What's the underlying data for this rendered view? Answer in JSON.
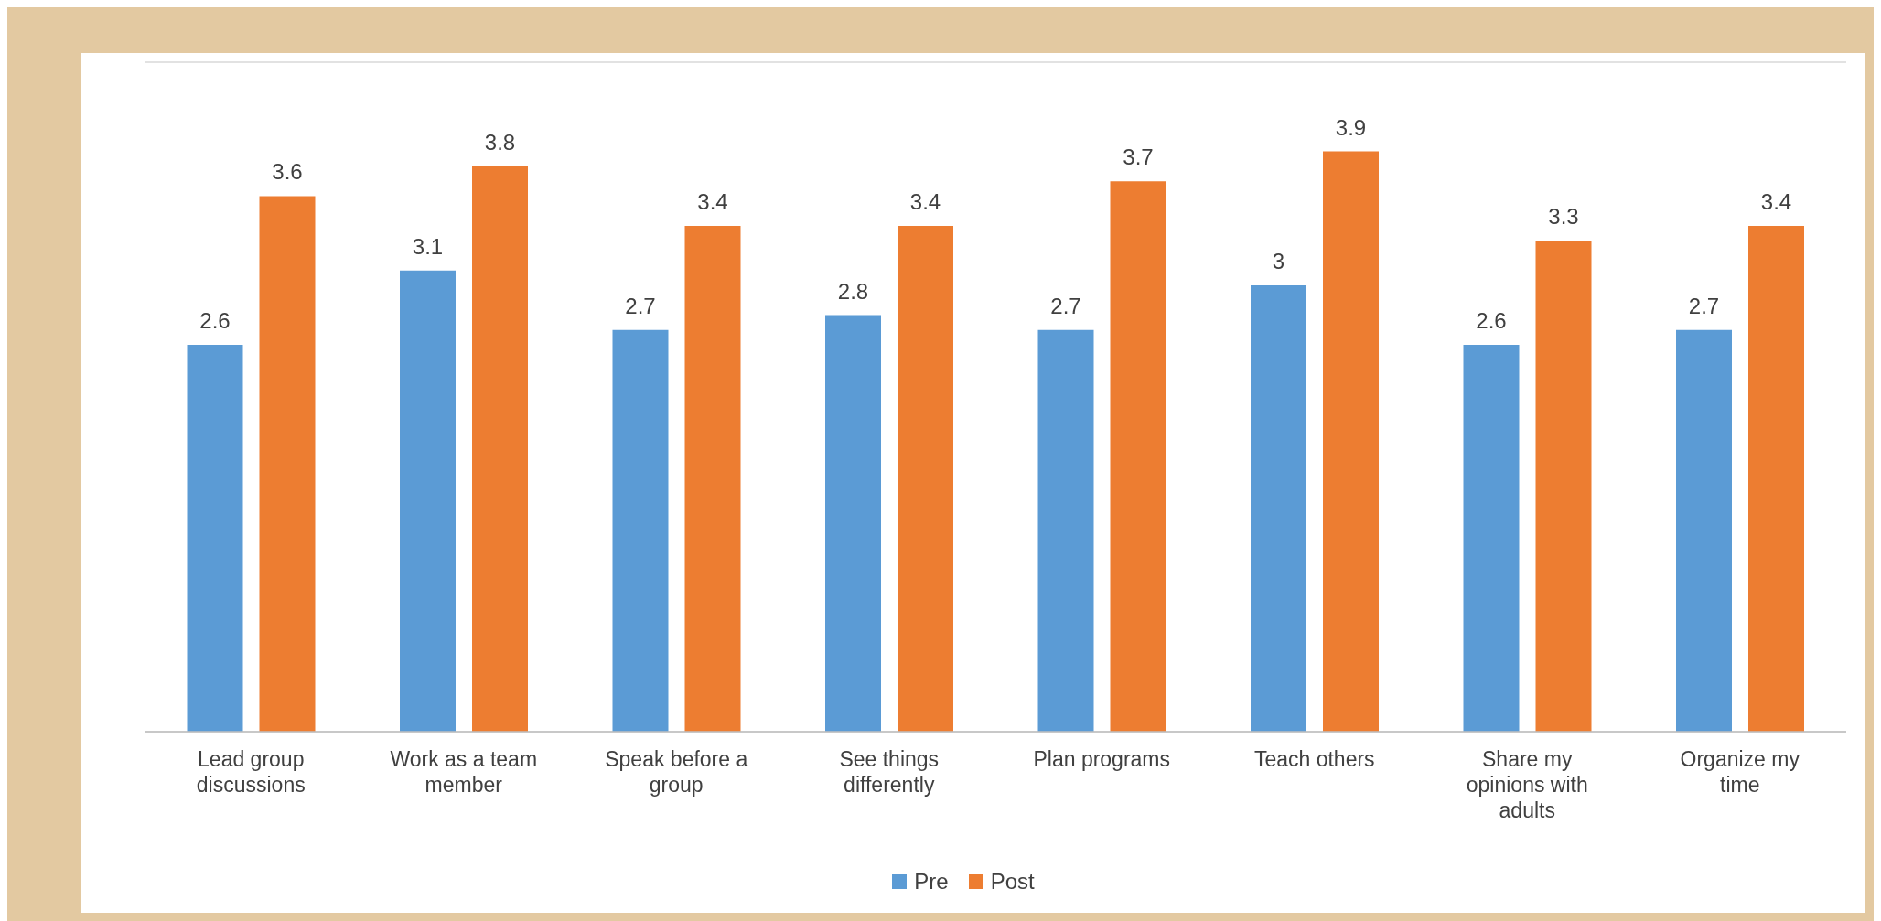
{
  "chart_data": {
    "type": "bar",
    "categories": [
      "Lead group discussions",
      "Work as a team member",
      "Speak before a group",
      "See things differently",
      "Plan programs",
      "Teach others",
      "Share my opinions with adults",
      "Organize my time"
    ],
    "series": [
      {
        "name": "Pre",
        "color": "#5b9bd5",
        "values": [
          2.6,
          3.1,
          2.7,
          2.8,
          2.7,
          3,
          2.6,
          2.7
        ]
      },
      {
        "name": "Post",
        "color": "#ed7d31",
        "values": [
          3.6,
          3.8,
          3.4,
          3.4,
          3.7,
          3.9,
          3.3,
          3.4
        ]
      }
    ],
    "ylim": [
      0,
      4.5
    ],
    "tick_labels": "x",
    "grid": "y",
    "legend": "bottom",
    "data_labels": true
  }
}
